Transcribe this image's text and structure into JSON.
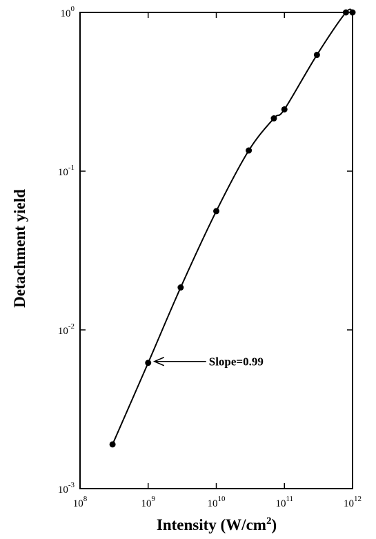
{
  "chart_data": {
    "type": "line",
    "xlabel_main": "Intensity (W/cm",
    "xlabel_sup": "2",
    "xlabel_end": ")",
    "ylabel": "Detachment yield",
    "x_scale": "log",
    "y_scale": "log",
    "xlim": [
      100000000.0,
      1000000000000.0
    ],
    "ylim": [
      0.001,
      1
    ],
    "grid": false,
    "x_ticks": [
      {
        "base": "10",
        "exp": "8"
      },
      {
        "base": "10",
        "exp": "9"
      },
      {
        "base": "10",
        "exp": "10"
      },
      {
        "base": "10",
        "exp": "11"
      },
      {
        "base": "10",
        "exp": "12"
      }
    ],
    "y_ticks": [
      {
        "base": "10",
        "exp": "-3"
      },
      {
        "base": "10",
        "exp": "-2"
      },
      {
        "base": "10",
        "exp": "-1"
      },
      {
        "base": "10",
        "exp": "0"
      }
    ],
    "series": [
      {
        "points": [
          {
            "x": 300000000.0,
            "y": 0.0019
          },
          {
            "x": 1000000000.0,
            "y": 0.0062
          },
          {
            "x": 3000000000.0,
            "y": 0.0185
          },
          {
            "x": 10000000000.0,
            "y": 0.056
          },
          {
            "x": 30000000000.0,
            "y": 0.135
          },
          {
            "x": 70000000000.0,
            "y": 0.215
          },
          {
            "x": 100000000000.0,
            "y": 0.245
          },
          {
            "x": 300000000000.0,
            "y": 0.54
          },
          {
            "x": 800000000000.0,
            "y": 1.0
          },
          {
            "x": 1000000000000.0,
            "y": 1.0
          }
        ]
      }
    ],
    "annotation": {
      "text": "Slope=0.99",
      "target": {
        "x": 1000000000.0,
        "y": 0.0062
      }
    }
  }
}
